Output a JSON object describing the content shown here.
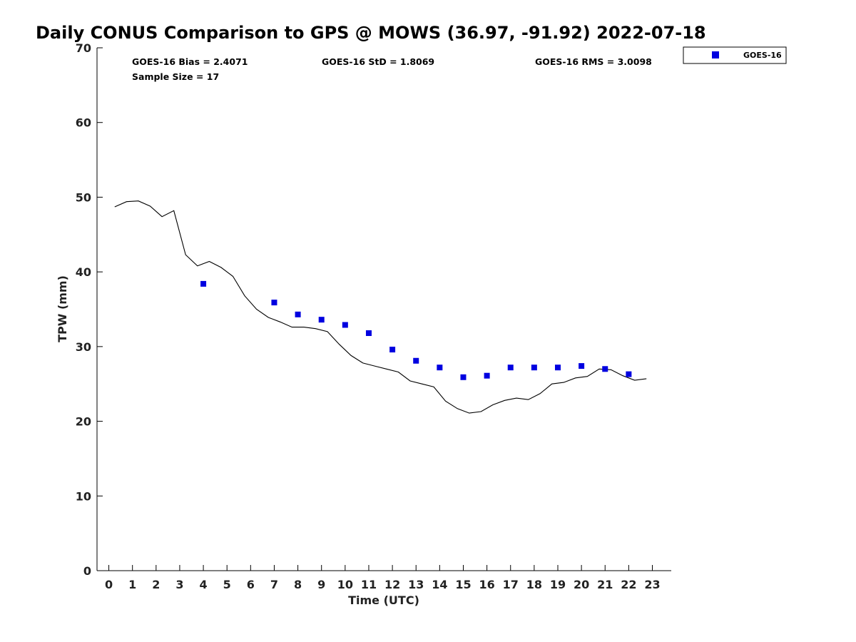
{
  "chart_data": {
    "type": "scatter",
    "title": "Daily CONUS Comparison to GPS @ MOWS (36.97, -91.92) 2022-07-18",
    "xlabel": "Time (UTC)",
    "ylabel": "TPW (mm)",
    "xlim": [
      -0.5,
      23.8
    ],
    "ylim": [
      0,
      70
    ],
    "xticks": [
      0,
      1,
      2,
      3,
      4,
      5,
      6,
      7,
      8,
      9,
      10,
      11,
      12,
      13,
      14,
      15,
      16,
      17,
      18,
      19,
      20,
      21,
      22,
      23
    ],
    "yticks": [
      0,
      10,
      20,
      30,
      40,
      50,
      60,
      70
    ],
    "grid": false,
    "legend_position": "top-right",
    "stats": {
      "bias": "GOES-16 Bias = 2.4071",
      "std": "GOES-16 StD = 1.8069",
      "rms": "GOES-16 RMS = 3.0098",
      "sample_size": "Sample Size = 17"
    },
    "series": [
      {
        "name": "GOES-16",
        "kind": "scatter",
        "color": "#0000e0",
        "marker": "square",
        "x": [
          4,
          7,
          8,
          9,
          10,
          11,
          12,
          13,
          14,
          15,
          16,
          17,
          18,
          19,
          20,
          21,
          22
        ],
        "y": [
          38.4,
          35.9,
          34.3,
          33.6,
          32.9,
          31.8,
          29.6,
          28.1,
          27.2,
          25.9,
          26.1,
          27.2,
          27.2,
          27.2,
          27.4,
          27.0,
          26.3
        ]
      },
      {
        "kind": "line",
        "color": "#000000",
        "x": [
          0.25,
          0.75,
          1.25,
          1.75,
          2.25,
          2.75,
          3.25,
          3.75,
          4.25,
          4.75,
          5.25,
          5.75,
          6.25,
          6.75,
          7.25,
          7.75,
          8.25,
          8.75,
          9.25,
          9.75,
          10.25,
          10.75,
          11.25,
          11.75,
          12.25,
          12.75,
          13.25,
          13.75,
          14.25,
          14.75,
          15.25,
          15.75,
          16.25,
          16.75,
          17.25,
          17.75,
          18.25,
          18.75,
          19.25,
          19.75,
          20.25,
          20.75,
          21.25,
          21.75,
          22.25,
          22.75
        ],
        "y": [
          48.7,
          49.4,
          49.5,
          48.8,
          47.4,
          48.2,
          42.3,
          40.8,
          41.4,
          40.6,
          39.4,
          36.8,
          35.0,
          33.9,
          33.3,
          32.6,
          32.6,
          32.4,
          32.0,
          30.3,
          28.8,
          27.8,
          27.4,
          27.0,
          26.6,
          25.4,
          25.0,
          24.6,
          22.7,
          21.7,
          21.1,
          21.3,
          22.2,
          22.8,
          23.1,
          22.9,
          23.7,
          25.0,
          25.2,
          25.8,
          26.0,
          27.0,
          26.9,
          26.1,
          25.5,
          25.7
        ]
      }
    ]
  }
}
